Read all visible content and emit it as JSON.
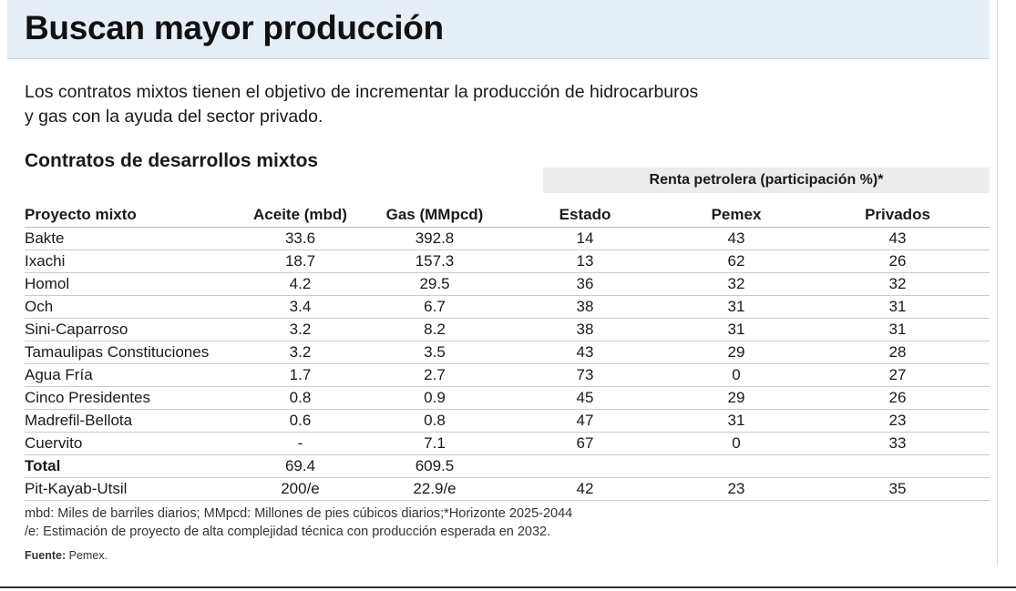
{
  "header": {
    "title": "Buscan mayor producción"
  },
  "intro": {
    "line1": "Los contratos mixtos tienen el objetivo de incrementar la producción de hidrocarburos",
    "line2": "y gas con la ayuda del sector privado."
  },
  "section_title": "Contratos de desarrollos mixtos",
  "group_header": "Renta petrolera (participación %)*",
  "table": {
    "columns": [
      "Proyecto mixto",
      "Aceite (mbd)",
      "Gas (MMpcd)",
      "Estado",
      "Pemex",
      "Privados"
    ],
    "rows": [
      [
        "Bakte",
        "33.6",
        "392.8",
        "14",
        "43",
        "43"
      ],
      [
        "Ixachi",
        "18.7",
        "157.3",
        "13",
        "62",
        "26"
      ],
      [
        "Homol",
        "4.2",
        "29.5",
        "36",
        "32",
        "32"
      ],
      [
        "Och",
        "3.4",
        "6.7",
        "38",
        "31",
        "31"
      ],
      [
        "Sini-Caparroso",
        "3.2",
        "8.2",
        "38",
        "31",
        "31"
      ],
      [
        "Tamaulipas Constituciones",
        "3.2",
        "3.5",
        "43",
        "29",
        "28"
      ],
      [
        "Agua Fría",
        "1.7",
        "2.7",
        "73",
        "0",
        "27"
      ],
      [
        "Cinco Presidentes",
        "0.8",
        "0.9",
        "45",
        "29",
        "26"
      ],
      [
        "Madrefil-Bellota",
        "0.6",
        "0.8",
        "47",
        "31",
        "23"
      ],
      [
        "Cuervito",
        "-",
        "7.1",
        "67",
        "0",
        "33"
      ],
      [
        "Total",
        "69.4",
        "609.5",
        "",
        "",
        ""
      ],
      [
        "Pit-Kayab-Utsil",
        "200/e",
        "22.9/e",
        "42",
        "23",
        "35"
      ]
    ]
  },
  "notes": {
    "line1": "mbd: Miles de barriles diarios; MMpcd: Millones de pies cúbicos diarios;*Horizonte 2025-2044",
    "line2": "/e: Estimación de proyecto de alta complejidad técnica  con producción esperada en 2032."
  },
  "source": {
    "label": "Fuente:",
    "value": "Pemex."
  }
}
